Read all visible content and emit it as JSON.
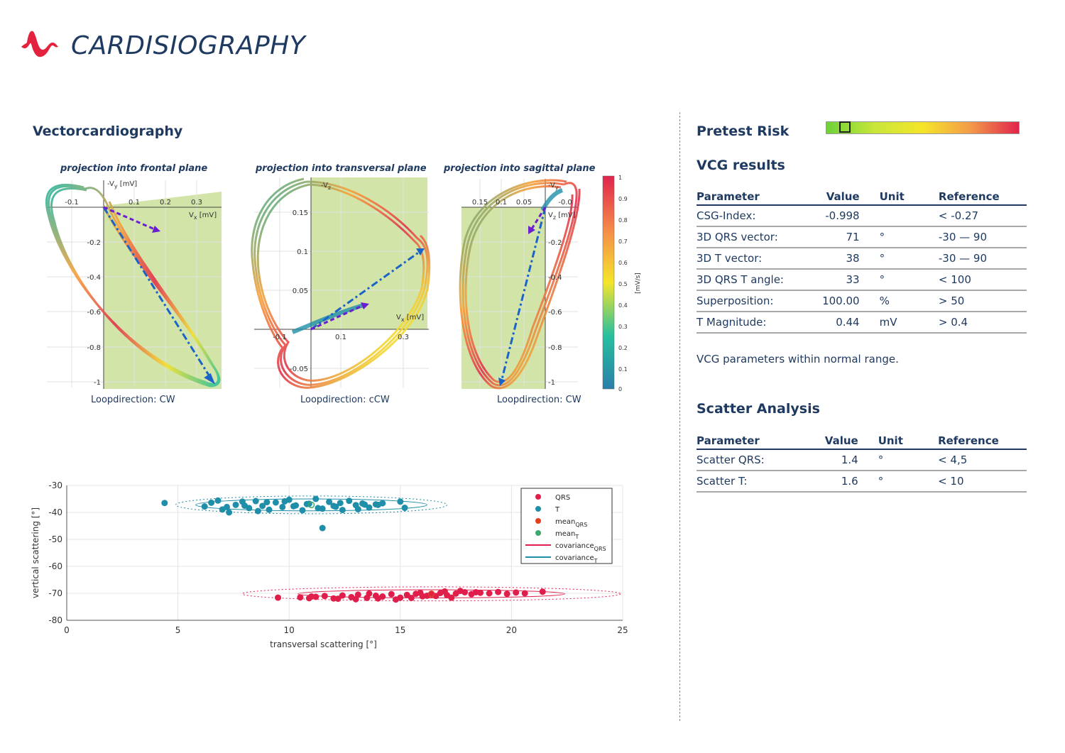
{
  "brand": {
    "title": "CARDISIOGRAPHY"
  },
  "vcg": {
    "heading": "Vectorcardiography",
    "plots": [
      {
        "title": "projection into frontal plane",
        "loopdirection": "Loopdirection: CW",
        "h_axis_label": "V",
        "h_axis_sub": "x",
        "h_axis_unit": "[mV]",
        "v_axis_label": "-V",
        "v_axis_sub": "y",
        "v_axis_unit": "[mV]",
        "h_ticks": [
          "-0.1",
          "0.1",
          "0.2",
          "0.3"
        ],
        "v_ticks": [
          "-0.2",
          "-0.4",
          "-0.6",
          "-0.8",
          "-1"
        ]
      },
      {
        "title": "projection into transversal plane",
        "loopdirection": "Loopdirection: cCW",
        "h_axis_label": "V",
        "h_axis_sub": "x",
        "h_axis_unit": "[mV]",
        "v_axis_label": "-V",
        "v_axis_sub": "z",
        "h_ticks": [
          "-0.1",
          "0.1",
          "0.3"
        ],
        "v_ticks": [
          "0.15",
          "0.1",
          "0.05",
          "-0.05"
        ]
      },
      {
        "title": "projection into sagittal plane",
        "loopdirection": "Loopdirection: CW",
        "h_axis_label": "V",
        "h_axis_sub": "z",
        "h_axis_unit": "[mV]",
        "v_axis_label": "-V",
        "v_axis_sub": "y",
        "h_ticks": [
          "0.15",
          "0.1",
          "0.05",
          "-0.0"
        ],
        "v_ticks": [
          "-0.2",
          "-0.4",
          "-0.6",
          "-0.8",
          "-1"
        ]
      }
    ],
    "colorbar": {
      "label": "[mV/s]",
      "ticks": [
        "1",
        "0.9",
        "0.8",
        "0.7",
        "0.6",
        "0.5",
        "0.4",
        "0.3",
        "0.2",
        "0.1",
        "0"
      ]
    }
  },
  "chart_data": {
    "type": "scatter",
    "xlabel": "transversal scattering  [°]",
    "ylabel": "vertical scattering [°]",
    "xlim": [
      0,
      25
    ],
    "ylim": [
      -80,
      -30
    ],
    "xticks": [
      0,
      5,
      10,
      15,
      20,
      25
    ],
    "yticks": [
      -30,
      -40,
      -50,
      -60,
      -70,
      -80
    ],
    "grid": true,
    "legend_position": "top-right",
    "legend": [
      {
        "label": "QRS",
        "sub": "",
        "kind": "dot",
        "color": "#e01e4c"
      },
      {
        "label": "T",
        "sub": "",
        "kind": "dot",
        "color": "#1f8ea8"
      },
      {
        "label": "mean",
        "sub": "QRS",
        "kind": "dot",
        "color": "#e0401e"
      },
      {
        "label": "mean",
        "sub": "T",
        "kind": "dot",
        "color": "#3fa86c"
      },
      {
        "label": "covariance",
        "sub": "QRS",
        "kind": "line",
        "color": "#e01e4c"
      },
      {
        "label": "covariance",
        "sub": "T",
        "kind": "line",
        "color": "#1f8ea8"
      }
    ],
    "series": [
      {
        "name": "QRS",
        "color": "#e01e4c",
        "x": [
          9.5,
          10.5,
          10.9,
          11.2,
          11.6,
          12.0,
          12.4,
          12.8,
          13.1,
          13.5,
          13.9,
          14.2,
          14.6,
          15.0,
          15.3,
          15.7,
          16.0,
          16.4,
          16.8,
          17.1,
          17.5,
          17.9,
          18.2,
          18.6,
          19.0,
          19.4,
          19.8,
          20.2,
          20.6,
          21.4,
          12.2,
          13.0,
          14.0,
          14.8,
          15.5,
          16.2,
          17.0,
          17.7,
          18.4,
          11.0,
          13.6,
          15.9,
          16.6,
          17.3
        ],
        "y": [
          -71.6,
          -71.5,
          -71.8,
          -71.3,
          -71.0,
          -71.9,
          -70.8,
          -71.4,
          -70.5,
          -71.7,
          -70.9,
          -71.2,
          -70.3,
          -71.6,
          -70.6,
          -70.2,
          -71.1,
          -70.4,
          -69.9,
          -70.7,
          -70.1,
          -69.6,
          -70.3,
          -69.8,
          -70.0,
          -69.5,
          -70.2,
          -69.7,
          -70.0,
          -69.4,
          -72.0,
          -72.2,
          -71.9,
          -72.3,
          -71.7,
          -70.9,
          -69.3,
          -69.1,
          -69.6,
          -71.2,
          -70.1,
          -69.8,
          -71.0,
          -71.6
        ]
      },
      {
        "name": "T",
        "color": "#1f8ea8",
        "x": [
          4.4,
          6.2,
          6.5,
          6.8,
          7.0,
          7.3,
          7.6,
          7.9,
          8.2,
          8.5,
          8.8,
          9.1,
          9.4,
          9.7,
          10.0,
          10.3,
          10.6,
          10.9,
          11.2,
          11.5,
          11.8,
          12.1,
          12.4,
          12.7,
          13.0,
          13.3,
          13.6,
          13.9,
          14.2,
          15.0,
          15.2,
          11.5,
          7.2,
          8.0,
          9.0,
          10.2,
          11.3,
          12.3,
          13.4,
          8.6,
          9.8,
          10.8,
          12.0,
          13.1,
          14.0
        ],
        "y": [
          -36.5,
          -37.8,
          -36.4,
          -35.6,
          -38.9,
          -40.0,
          -37.2,
          -36.0,
          -38.4,
          -35.8,
          -37.6,
          -39.0,
          -36.3,
          -38.0,
          -35.3,
          -37.4,
          -39.2,
          -36.8,
          -35.0,
          -38.6,
          -36.1,
          -37.9,
          -39.1,
          -35.7,
          -37.3,
          -36.7,
          -38.2,
          -37.0,
          -36.6,
          -36.0,
          -38.3,
          -45.8,
          -38.0,
          -37.5,
          -36.2,
          -37.7,
          -38.4,
          -36.5,
          -37.1,
          -39.5,
          -35.9,
          -36.9,
          -37.6,
          -38.8,
          -37.2
        ]
      }
    ],
    "means": [
      {
        "name": "mean_QRS",
        "x": 16.4,
        "y": -70.2,
        "color": "#e0401e"
      },
      {
        "name": "mean_T",
        "x": 11.0,
        "y": -37.2,
        "color": "#3fa86c"
      }
    ],
    "ellipses": [
      {
        "name": "covariance_QRS",
        "cx": 16.4,
        "cy": -70.2,
        "rx": 6.0,
        "ry": 1.5,
        "color": "#e01e4c",
        "style": "solid"
      },
      {
        "name": "covariance_QRS_outer",
        "cx": 16.4,
        "cy": -70.2,
        "rx": 8.5,
        "ry": 2.6,
        "color": "#e01e4c",
        "style": "dotted"
      },
      {
        "name": "covariance_T",
        "cx": 11.0,
        "cy": -37.2,
        "rx": 5.2,
        "ry": 2.2,
        "color": "#1f8ea8",
        "style": "solid"
      },
      {
        "name": "covariance_T_outer",
        "cx": 11.0,
        "cy": -37.2,
        "rx": 6.1,
        "ry": 3.3,
        "color": "#1f8ea8",
        "style": "dotted"
      }
    ]
  },
  "risk": {
    "heading": "Pretest Risk",
    "level": 0.07
  },
  "vcg_results": {
    "heading": "VCG results",
    "headers": [
      "Parameter",
      "Value",
      "Unit",
      "Reference"
    ],
    "rows": [
      [
        "CSG-Index:",
        "-0.998",
        "",
        "< -0.27"
      ],
      [
        "3D QRS vector:",
        "71",
        "°",
        "-30 — 90"
      ],
      [
        "3D T vector:",
        "38",
        "°",
        "-30 — 90"
      ],
      [
        "3D QRS T angle:",
        "33",
        "°",
        "< 100"
      ],
      [
        "Superposition:",
        "100.00",
        "%",
        "> 50"
      ],
      [
        "T Magnitude:",
        "0.44",
        "mV",
        "> 0.4"
      ]
    ],
    "status": "VCG parameters within normal range."
  },
  "scatter_results": {
    "heading": "Scatter Analysis",
    "headers": [
      "Parameter",
      "Value",
      "Unit",
      "Reference"
    ],
    "rows": [
      [
        "Scatter QRS:",
        "1.4",
        "°",
        "< 4,5"
      ],
      [
        "Scatter T:",
        "1.6",
        "°",
        "< 10"
      ]
    ]
  }
}
